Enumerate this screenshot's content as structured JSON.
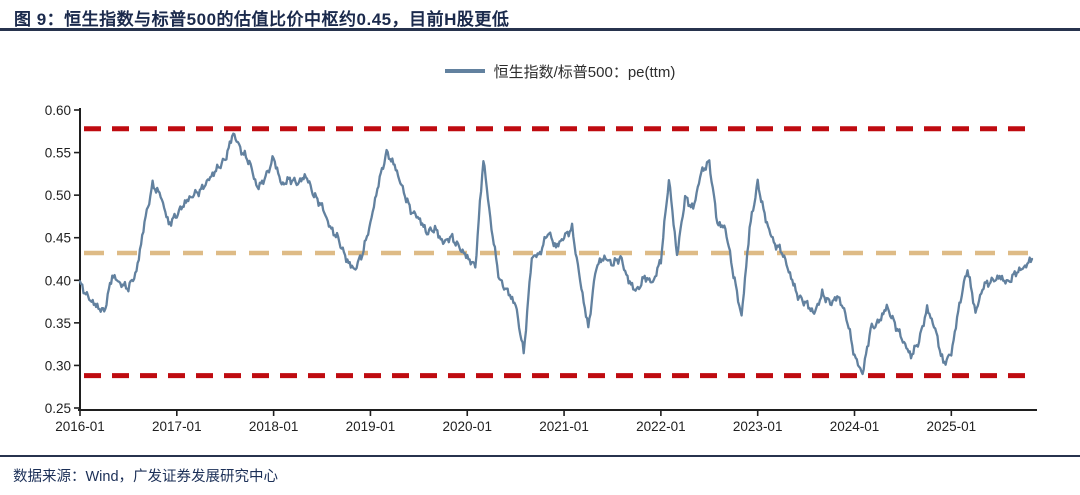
{
  "header": {
    "title": "图 9：恒生指数与标普500的估值比价中枢约0.45，目前H股更低"
  },
  "legend": {
    "label": "恒生指数/标普500：pe(ttm)"
  },
  "footer": {
    "source": "数据来源：Wind，广发证券发展研究中心"
  },
  "colors": {
    "series": "#62819f",
    "bound_line": "#bf0b10",
    "center_line": "#debb86",
    "title_navy": "#1b2a4c",
    "axis": "#1f1f1f"
  },
  "chart_data": {
    "type": "line",
    "title": "图 9：恒生指数与标普500的估值比价中枢约0.45，目前H股更低",
    "series_name": "恒生指数/标普500：pe(ttm)",
    "x_start": "2016-01",
    "x_end": "2025-11",
    "x_frequency": "monthly",
    "x_tick_labels": [
      "2016-01",
      "2017-01",
      "2018-01",
      "2019-01",
      "2020-01",
      "2021-01",
      "2022-01",
      "2023-01",
      "2024-01",
      "2025-01"
    ],
    "y_tick_labels": [
      "0.25",
      "0.30",
      "0.35",
      "0.40",
      "0.45",
      "0.50",
      "0.55",
      "0.60"
    ],
    "y_ticks": [
      0.25,
      0.3,
      0.35,
      0.4,
      0.45,
      0.5,
      0.55,
      0.6
    ],
    "ylim": [
      0.25,
      0.6
    ],
    "grid": false,
    "legend_position": "top-center",
    "values": [
      0.396,
      0.38,
      0.37,
      0.363,
      0.406,
      0.396,
      0.391,
      0.41,
      0.468,
      0.512,
      0.5,
      0.466,
      0.477,
      0.491,
      0.5,
      0.506,
      0.519,
      0.531,
      0.542,
      0.573,
      0.552,
      0.539,
      0.508,
      0.521,
      0.544,
      0.512,
      0.519,
      0.514,
      0.523,
      0.5,
      0.487,
      0.462,
      0.449,
      0.425,
      0.412,
      0.431,
      0.467,
      0.514,
      0.55,
      0.535,
      0.507,
      0.482,
      0.473,
      0.456,
      0.461,
      0.444,
      0.451,
      0.439,
      0.427,
      0.416,
      0.543,
      0.461,
      0.4,
      0.387,
      0.371,
      0.314,
      0.427,
      0.431,
      0.457,
      0.439,
      0.451,
      0.461,
      0.399,
      0.344,
      0.417,
      0.427,
      0.419,
      0.427,
      0.399,
      0.387,
      0.404,
      0.397,
      0.424,
      0.519,
      0.429,
      0.497,
      0.484,
      0.527,
      0.539,
      0.467,
      0.461,
      0.407,
      0.357,
      0.461,
      0.514,
      0.471,
      0.444,
      0.434,
      0.407,
      0.381,
      0.373,
      0.361,
      0.384,
      0.373,
      0.381,
      0.357,
      0.311,
      0.29,
      0.343,
      0.351,
      0.369,
      0.349,
      0.329,
      0.311,
      0.329,
      0.367,
      0.343,
      0.302,
      0.314,
      0.371,
      0.414,
      0.362,
      0.394,
      0.399,
      0.404,
      0.397,
      0.409,
      0.415,
      0.425
    ],
    "hlines": [
      {
        "name": "upper-bound-line",
        "value": 0.578,
        "color": "#bf0b10",
        "style": "dashed"
      },
      {
        "name": "valuation-center-line",
        "value": 0.432,
        "color": "#debb86",
        "style": "dashed"
      },
      {
        "name": "lower-bound-line",
        "value": 0.288,
        "color": "#bf0b10",
        "style": "dashed"
      }
    ]
  }
}
